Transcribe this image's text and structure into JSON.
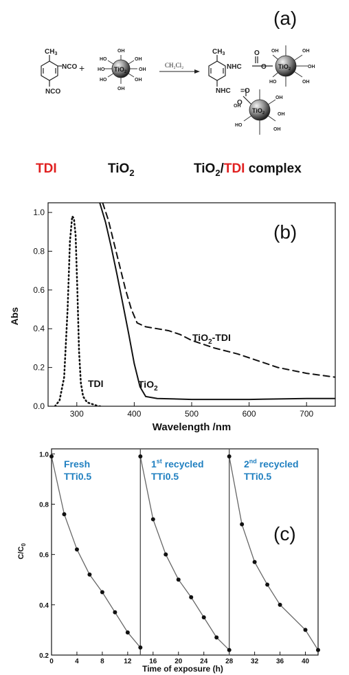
{
  "panel_a": {
    "label": "(a)",
    "reagent_ch3": "CH",
    "reagent_ch3_sub": "3",
    "nco": "NCO",
    "plus": "+",
    "oh": "OH",
    "ho": "HO",
    "tio2_core": "TiO",
    "tio2_core_sub": "2",
    "arrow_text": "CH₂Cl₂",
    "nhc": "NHC",
    "o": "O",
    "o_dbl": "=O",
    "cap_tdi": "TDI",
    "cap_tio2": "TiO",
    "cap_tio2_sub": "2",
    "cap_complex_tio2": "TiO",
    "cap_complex_sub": "2",
    "cap_complex_slash": "/",
    "cap_complex_tdi": "TDI",
    "cap_complex_word": " complex",
    "red": "#e02020"
  },
  "chart_data": [
    {
      "type": "line",
      "panel_label": "(b)",
      "xlabel": "Wavelength /nm",
      "ylabel": "Abs",
      "xlim": [
        250,
        750
      ],
      "ylim": [
        0,
        1.05
      ],
      "xticks": [
        300,
        400,
        500,
        600,
        700
      ],
      "yticks": [
        0.0,
        0.2,
        0.4,
        0.6,
        0.8,
        1.0
      ],
      "series": [
        {
          "name": "TDI",
          "style": "dotted",
          "x": [
            262,
            270,
            278,
            284,
            288,
            292,
            295,
            298,
            301,
            304,
            307,
            311,
            318,
            328,
            338,
            345
          ],
          "y": [
            0.0,
            0.03,
            0.15,
            0.5,
            0.85,
            0.98,
            0.97,
            0.88,
            0.6,
            0.28,
            0.12,
            0.05,
            0.02,
            0.01,
            0.0,
            0.0
          ]
        },
        {
          "name": "TiO₂",
          "style": "solid",
          "x": [
            340,
            350,
            360,
            370,
            380,
            390,
            400,
            410,
            420,
            440,
            500,
            600,
            700,
            750
          ],
          "y": [
            1.05,
            0.95,
            0.82,
            0.68,
            0.53,
            0.38,
            0.22,
            0.1,
            0.05,
            0.04,
            0.035,
            0.035,
            0.04,
            0.04
          ]
        },
        {
          "name": "TiO₂-TDI",
          "style": "dashed",
          "x": [
            345,
            355,
            365,
            375,
            385,
            395,
            405,
            420,
            440,
            460,
            480,
            500,
            540,
            580,
            600,
            650,
            700,
            750
          ],
          "y": [
            1.05,
            0.96,
            0.84,
            0.72,
            0.6,
            0.5,
            0.43,
            0.41,
            0.4,
            0.39,
            0.37,
            0.34,
            0.3,
            0.27,
            0.25,
            0.2,
            0.17,
            0.15
          ]
        }
      ],
      "annotations": {
        "tdi": "TDI",
        "tio2": "TiO",
        "tio2_sub": "2",
        "tio2tdi": "TiO",
        "tio2tdi_sub": "2",
        "tio2tdi_suffix": "-TDI"
      }
    },
    {
      "type": "scatter",
      "panel_label": "(c)",
      "xlabel": "Time of exposure (h)",
      "ylabel": "C/C",
      "ylabel_sub": "0",
      "xlim": [
        0,
        42
      ],
      "ylim": [
        0.2,
        1.02
      ],
      "xticks": [
        0,
        4,
        8,
        12,
        16,
        20,
        24,
        28,
        32,
        36,
        40
      ],
      "yticks": [
        0.2,
        0.4,
        0.6,
        0.8,
        1.0
      ],
      "dividers": [
        14,
        28
      ],
      "series": [
        {
          "name": "Fresh TTi0.5",
          "x": [
            0,
            2,
            4,
            6,
            8,
            10,
            12,
            14
          ],
          "y": [
            0.99,
            0.76,
            0.62,
            0.52,
            0.45,
            0.37,
            0.29,
            0.23
          ]
        },
        {
          "name": "1st recycled TTi0.5",
          "x": [
            14,
            16,
            18,
            20,
            22,
            24,
            26,
            28
          ],
          "y": [
            0.99,
            0.74,
            0.6,
            0.5,
            0.43,
            0.35,
            0.27,
            0.22
          ]
        },
        {
          "name": "2nd recycled TTi0.5",
          "x": [
            28,
            30,
            32,
            34,
            36,
            40,
            42
          ],
          "y": [
            0.99,
            0.72,
            0.57,
            0.48,
            0.4,
            0.3,
            0.22
          ]
        }
      ],
      "labels": {
        "fresh_l1": "Fresh",
        "fresh_l2": "TTi0.5",
        "r1_num": "1",
        "r1_sup": "st",
        "r1_word": " recycled",
        "r1_l2": "TTi0.5",
        "r2_num": "2",
        "r2_sup": "nd",
        "r2_word": " recycled",
        "r2_l2": "TTi0.5"
      },
      "label_color": "#1f7fc0"
    }
  ]
}
